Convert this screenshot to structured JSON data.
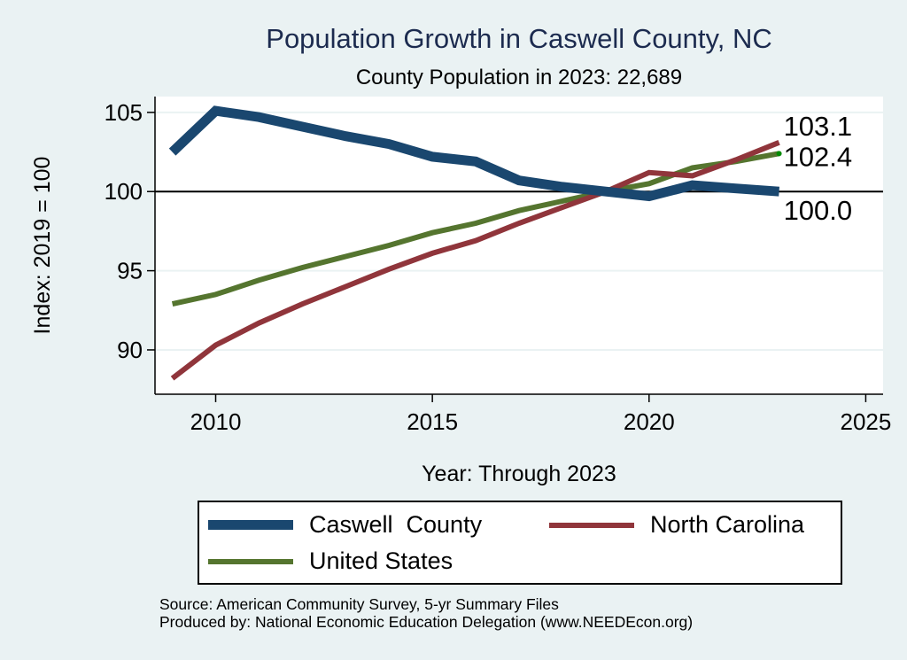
{
  "title": "Population Growth in Caswell County, NC",
  "subtitle": "County Population in 2023: 22,689",
  "source_lines": [
    "Source: American Community Survey, 5-yr Summary Files",
    "Produced by: National Economic Education Delegation (www.NEEDEcon.org)"
  ],
  "chart_data": {
    "type": "line",
    "title": "Population Growth in Caswell County, NC",
    "subtitle": "County Population in 2023: 22,689",
    "xlabel": "Year: Through 2023",
    "ylabel": "Index: 2019 = 100",
    "xlim": [
      2008.6,
      2025.4
    ],
    "ylim": [
      87.2,
      106
    ],
    "x_ticks": [
      2010,
      2015,
      2020,
      2025
    ],
    "y_ticks": [
      90,
      95,
      100,
      105
    ],
    "grid": true,
    "reference_line": 100,
    "legend_position": "bottom",
    "x": [
      2009,
      2010,
      2011,
      2012,
      2013,
      2014,
      2015,
      2016,
      2017,
      2018,
      2019,
      2020,
      2021,
      2022,
      2023
    ],
    "series": [
      {
        "name": "Caswell  County",
        "color": "#1a476f",
        "width": "thick",
        "values": [
          102.5,
          105.1,
          104.7,
          104.1,
          103.5,
          103.0,
          102.2,
          101.9,
          100.7,
          100.3,
          100.0,
          99.7,
          100.4,
          100.2,
          100.0
        ],
        "end_label": "100.0"
      },
      {
        "name": "North Carolina",
        "color": "#90353b",
        "width": "thin",
        "values": [
          88.2,
          90.3,
          91.7,
          92.9,
          94.0,
          95.1,
          96.1,
          96.9,
          98.0,
          99.0,
          100.0,
          101.2,
          101.0,
          102.0,
          103.1
        ],
        "end_label": "103.1"
      },
      {
        "name": "United States",
        "color": "#55752f",
        "width": "thin",
        "values": [
          92.9,
          93.5,
          94.4,
          95.2,
          95.9,
          96.6,
          97.4,
          98.0,
          98.8,
          99.4,
          100.0,
          100.5,
          101.5,
          101.9,
          102.4
        ],
        "end_label": "102.4"
      }
    ]
  }
}
